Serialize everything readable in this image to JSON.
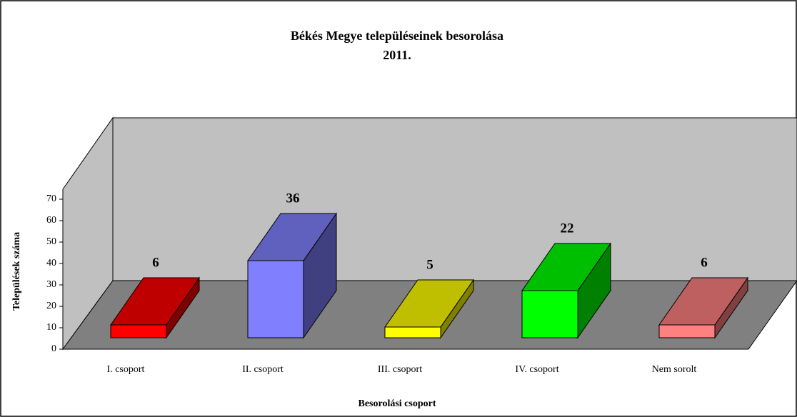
{
  "chart_data": {
    "type": "bar3d",
    "title": "Békés Megye településeinek besorolása",
    "subtitle": "2011.",
    "xlabel": "Besorolási csoport",
    "ylabel": "Települések száma",
    "categories": [
      "I. csoport",
      "II. csoport",
      "III. csoport",
      "IV. csoport",
      "Nem sorolt"
    ],
    "values": [
      6,
      36,
      5,
      22,
      6
    ],
    "colors": [
      "#ff0000",
      "#8080ff",
      "#ffff00",
      "#00ff00",
      "#ff8080"
    ],
    "ylim": [
      0,
      70
    ],
    "yticks": [
      0,
      10,
      20,
      30,
      40,
      50,
      60,
      70
    ]
  }
}
